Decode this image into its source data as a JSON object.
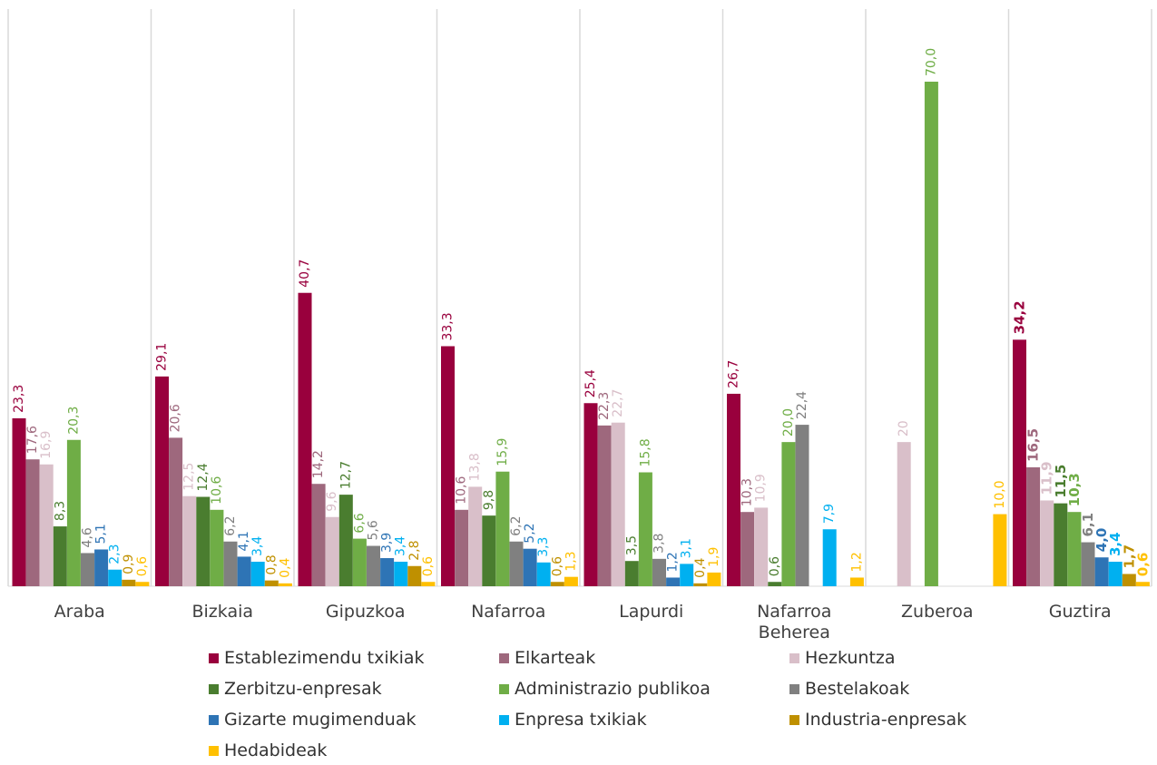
{
  "chart_data": {
    "type": "bar",
    "categories": [
      "Araba",
      "Bizkaia",
      "Gipuzkoa",
      "Nafarroa",
      "Lapurdi",
      "Nafarroa Beherea",
      "Zuberoa",
      "Guztira"
    ],
    "ylim": [
      0,
      70
    ],
    "grid": false,
    "legend_position": "bottom",
    "series": [
      {
        "name": "Establezimendu txikiak",
        "color": "#99003d",
        "values": [
          23.3,
          29.1,
          40.7,
          33.3,
          25.4,
          26.7,
          null,
          34.2
        ],
        "labels": [
          "23,3",
          "29,1",
          "40,7",
          "33,3",
          "25,4",
          "26,7",
          "",
          "34,2"
        ]
      },
      {
        "name": "Elkarteak",
        "color": "#9e687d",
        "values": [
          17.6,
          20.6,
          14.2,
          10.6,
          22.3,
          10.3,
          null,
          16.5
        ],
        "labels": [
          "17,6",
          "20,6",
          "14,2",
          "10,6",
          "22,3",
          "10,3",
          "",
          "16,5"
        ]
      },
      {
        "name": "Hezkuntza",
        "color": "#d9bfc9",
        "values": [
          16.9,
          12.5,
          9.6,
          13.8,
          22.7,
          10.9,
          20,
          11.9
        ],
        "labels": [
          "16,9",
          "12,5",
          "9,6",
          "13,8",
          "22,7",
          "10,9",
          "20",
          "11,9"
        ]
      },
      {
        "name": "Zerbitzu-enpresak",
        "color": "#4a7d2f",
        "values": [
          8.3,
          12.4,
          12.7,
          9.8,
          3.5,
          0.6,
          null,
          11.5
        ],
        "labels": [
          "8,3",
          "12,4",
          "12,7",
          "9,8",
          "3,5",
          "0,6",
          "",
          "11,5"
        ]
      },
      {
        "name": "Administrazio publikoa",
        "color": "#6fad46",
        "values": [
          20.3,
          10.6,
          6.6,
          15.9,
          15.8,
          20.0,
          70.0,
          10.3
        ],
        "labels": [
          "20,3",
          "10,6",
          "6,6",
          "15,9",
          "15,8",
          "20,0",
          "70,0",
          "10,3"
        ]
      },
      {
        "name": "Bestelakoak",
        "color": "#808080",
        "values": [
          4.6,
          6.2,
          5.6,
          6.2,
          3.8,
          22.4,
          null,
          6.1
        ],
        "labels": [
          "4,6",
          "6,2",
          "5,6",
          "6,2",
          "3,8",
          "22,4",
          "",
          "6,1"
        ]
      },
      {
        "name": "Gizarte mugimenduak",
        "color": "#2e74b5",
        "values": [
          5.1,
          4.1,
          3.9,
          5.2,
          1.2,
          null,
          null,
          4.0
        ],
        "labels": [
          "5,1",
          "4,1",
          "3,9",
          "5,2",
          "1,2",
          "",
          "",
          "4,0"
        ]
      },
      {
        "name": "Enpresa txikiak",
        "color": "#00b0f0",
        "values": [
          2.3,
          3.4,
          3.4,
          3.3,
          3.1,
          7.9,
          null,
          3.4
        ],
        "labels": [
          "2,3",
          "3,4",
          "3,4",
          "3,3",
          "3,1",
          "7,9",
          "",
          "3,4"
        ]
      },
      {
        "name": "Industria-enpresak",
        "color": "#bf9000",
        "values": [
          0.9,
          0.8,
          2.8,
          0.6,
          0.4,
          null,
          null,
          1.7
        ],
        "labels": [
          "0,9",
          "0,8",
          "2,8",
          "0,6",
          "0,4",
          "",
          "",
          "1,7"
        ]
      },
      {
        "name": "Hedabideak",
        "color": "#ffc000",
        "values": [
          0.6,
          0.4,
          0.6,
          1.3,
          1.9,
          1.2,
          10.0,
          0.6
        ],
        "labels": [
          "0,6",
          "0,4",
          "0,6",
          "1,3",
          "1,9",
          "1,2",
          "10,0",
          "0,6"
        ]
      }
    ]
  }
}
